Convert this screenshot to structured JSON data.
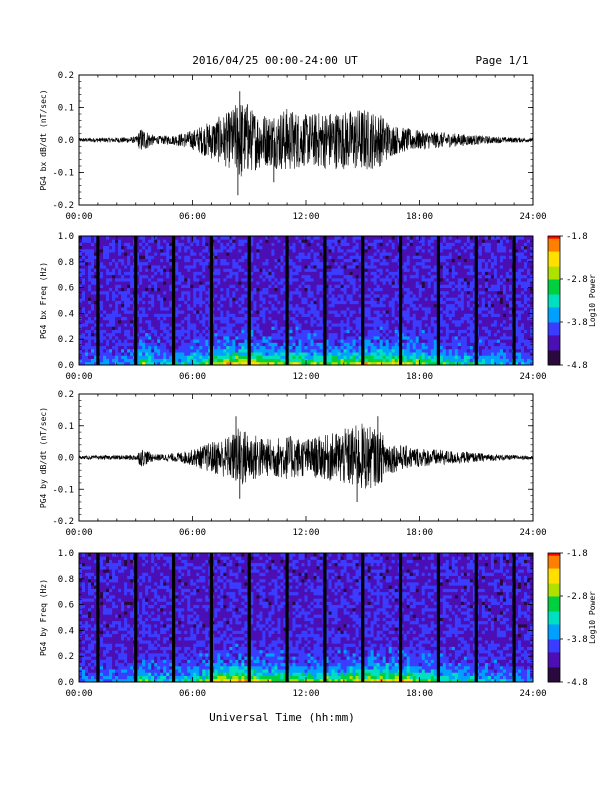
{
  "header": {
    "date_range": "2016/04/25  00:00-24:00 UT",
    "page": "Page 1/1"
  },
  "xlabel": "Universal Time (hh:mm)",
  "colors": {
    "trace": "#000000",
    "colormap": [
      "#2a0a3e",
      "#4b0fb4",
      "#3a3cff",
      "#00a0ff",
      "#00e0c0",
      "#00d040",
      "#b0e000",
      "#ffe000",
      "#ff8000",
      "#ff0000"
    ]
  },
  "chart_data": [
    {
      "type": "line",
      "ylabel": "PG4 bx dB/dt (nT/sec)",
      "x_ticks": [
        "00:00",
        "06:00",
        "12:00",
        "18:00",
        "24:00"
      ],
      "y_ticks": [
        "0.2",
        "0.1",
        "0.0",
        "-0.1",
        "-0.2"
      ],
      "ylim": [
        -0.2,
        0.2
      ],
      "xlim_hours": [
        0,
        24
      ],
      "envelope": {
        "hours": [
          0,
          2,
          3,
          3.3,
          4,
          5,
          6,
          7,
          8,
          8.5,
          9,
          10,
          11,
          12,
          13,
          14,
          15,
          16,
          16.5,
          17,
          18,
          19,
          20,
          21,
          22,
          24
        ],
        "amplitude": [
          0.006,
          0.008,
          0.01,
          0.04,
          0.012,
          0.015,
          0.03,
          0.06,
          0.09,
          0.13,
          0.1,
          0.08,
          0.1,
          0.08,
          0.09,
          0.09,
          0.1,
          0.08,
          0.05,
          0.04,
          0.03,
          0.025,
          0.02,
          0.015,
          0.01,
          0.006
        ]
      },
      "peaks": [
        {
          "x": 8.5,
          "y": 0.15
        },
        {
          "x": 8.4,
          "y": -0.17
        },
        {
          "x": 8.9,
          "y": 0.11
        },
        {
          "x": 10.3,
          "y": -0.13
        }
      ]
    },
    {
      "type": "heatmap",
      "ylabel": "PG4 bx Freq (Hz)",
      "x_ticks": [
        "00:00",
        "06:00",
        "12:00",
        "18:00",
        "24:00"
      ],
      "y_ticks": [
        "1.0",
        "0.8",
        "0.6",
        "0.4",
        "0.2",
        "0.0"
      ],
      "ylim": [
        0.0,
        1.0
      ],
      "xlim_hours": [
        0,
        24
      ],
      "colorbar": {
        "label": "Log10 Power",
        "ticks": [
          "-1.8",
          "-2.8",
          "-3.8",
          "-4.8"
        ],
        "range": [
          -4.8,
          -1.8
        ]
      },
      "gap_hours": [
        1.0,
        3.0,
        5.0,
        7.0,
        9.0,
        11.0,
        13.0,
        15.0,
        17.0,
        19.0,
        21.0,
        23.0
      ],
      "power_profile": {
        "hours": [
          0,
          3,
          3.3,
          4,
          6,
          7,
          8,
          9,
          10,
          12,
          14,
          15,
          16,
          17,
          18,
          19,
          20,
          22,
          24
        ],
        "low_freq_level": [
          0.15,
          0.2,
          0.55,
          0.25,
          0.35,
          0.55,
          0.7,
          0.65,
          0.55,
          0.5,
          0.5,
          0.6,
          0.65,
          0.6,
          0.5,
          0.45,
          0.35,
          0.25,
          0.2
        ]
      }
    },
    {
      "type": "line",
      "ylabel": "PG4 by dB/dt (nT/sec)",
      "x_ticks": [
        "00:00",
        "06:00",
        "12:00",
        "18:00",
        "24:00"
      ],
      "y_ticks": [
        "0.2",
        "0.1",
        "0.0",
        "-0.1",
        "-0.2"
      ],
      "ylim": [
        -0.2,
        0.2
      ],
      "xlim_hours": [
        0,
        24
      ],
      "envelope": {
        "hours": [
          0,
          2,
          3,
          3.3,
          4,
          5,
          6,
          7,
          8,
          8.5,
          9,
          10,
          11,
          12,
          13,
          14,
          15,
          16,
          16.5,
          17,
          18,
          19,
          20,
          21,
          22,
          24
        ],
        "amplitude": [
          0.005,
          0.007,
          0.009,
          0.03,
          0.01,
          0.013,
          0.025,
          0.05,
          0.07,
          0.1,
          0.08,
          0.06,
          0.07,
          0.06,
          0.07,
          0.09,
          0.11,
          0.08,
          0.05,
          0.04,
          0.03,
          0.025,
          0.02,
          0.015,
          0.01,
          0.005
        ]
      },
      "peaks": [
        {
          "x": 8.3,
          "y": 0.13
        },
        {
          "x": 8.5,
          "y": -0.13
        },
        {
          "x": 15.8,
          "y": 0.13
        },
        {
          "x": 14.7,
          "y": -0.14
        }
      ]
    },
    {
      "type": "heatmap",
      "ylabel": "PG4 by Freq (Hz)",
      "x_ticks": [
        "00:00",
        "06:00",
        "12:00",
        "18:00",
        "24:00"
      ],
      "y_ticks": [
        "1.0",
        "0.8",
        "0.6",
        "0.4",
        "0.2",
        "0.0"
      ],
      "ylim": [
        0.0,
        1.0
      ],
      "xlim_hours": [
        0,
        24
      ],
      "colorbar": {
        "label": "Log10 Power",
        "ticks": [
          "-1.8",
          "-2.8",
          "-3.8",
          "-4.8"
        ],
        "range": [
          -4.8,
          -1.8
        ]
      },
      "gap_hours": [
        1.0,
        3.0,
        5.0,
        7.0,
        9.0,
        11.0,
        13.0,
        15.0,
        17.0,
        19.0,
        21.0,
        23.0
      ],
      "power_profile": {
        "hours": [
          0,
          3,
          3.3,
          4,
          6,
          7,
          8,
          9,
          10,
          12,
          14,
          15,
          16,
          17,
          18,
          19,
          20,
          22,
          24
        ],
        "low_freq_level": [
          0.15,
          0.2,
          0.55,
          0.25,
          0.35,
          0.55,
          0.7,
          0.65,
          0.55,
          0.5,
          0.5,
          0.6,
          0.65,
          0.6,
          0.5,
          0.45,
          0.35,
          0.25,
          0.2
        ]
      }
    }
  ]
}
